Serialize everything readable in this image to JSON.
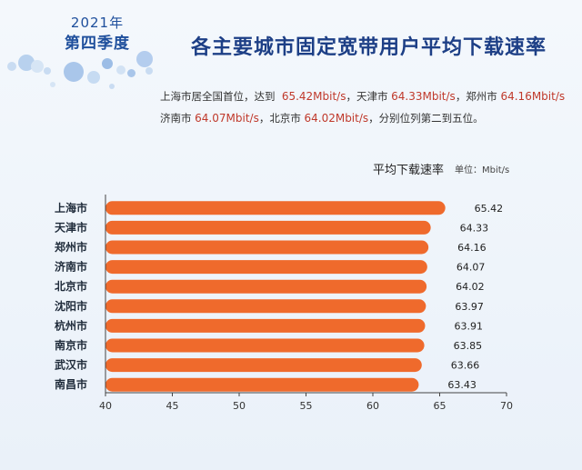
{
  "header": {
    "year": "2021年",
    "quarter": "第四季度",
    "title": "各主要城市固定宽带用户平均下载速率"
  },
  "summary": {
    "line1_a": "上海市居全国首位，达到",
    "line1_b": "65.42Mbit/s",
    "line1_c": "，天津市",
    "line1_d": "64.33Mbit/s",
    "line1_e": "，郑州市",
    "line1_f": "64.16Mbit/s",
    "line2_a": "济南市",
    "line2_b": "64.07Mbit/s",
    "line2_c": "，北京市",
    "line2_d": "64.02Mbit/s",
    "line2_e": "，分别位列第二到五位。"
  },
  "legend": {
    "series_label": "平均下载速率",
    "unit_label": "单位：Mbit/s"
  },
  "colors": {
    "bar": "#ef6a2c",
    "title": "#1d3f86",
    "highlight": "#c0392b",
    "bubble": "#aac8ec"
  },
  "chart_data": {
    "type": "bar",
    "orientation": "horizontal",
    "categories": [
      "上海市",
      "天津市",
      "郑州市",
      "济南市",
      "北京市",
      "沈阳市",
      "杭州市",
      "南京市",
      "武汉市",
      "南昌市"
    ],
    "series": [
      {
        "name": "平均下载速率",
        "values": [
          65.42,
          64.33,
          64.16,
          64.07,
          64.02,
          63.97,
          63.91,
          63.85,
          63.66,
          63.43
        ]
      }
    ],
    "data_labels": [
      "65.42",
      "64.33",
      "64.16",
      "64.07",
      "64.02",
      "63.97",
      "63.91",
      "63.85",
      "63.66",
      "63.43"
    ],
    "xlim": [
      40,
      70
    ],
    "xticks": [
      40,
      45,
      50,
      55,
      60,
      65,
      70
    ],
    "unit": "Mbit/s",
    "grid": false,
    "legend": "top-right"
  }
}
